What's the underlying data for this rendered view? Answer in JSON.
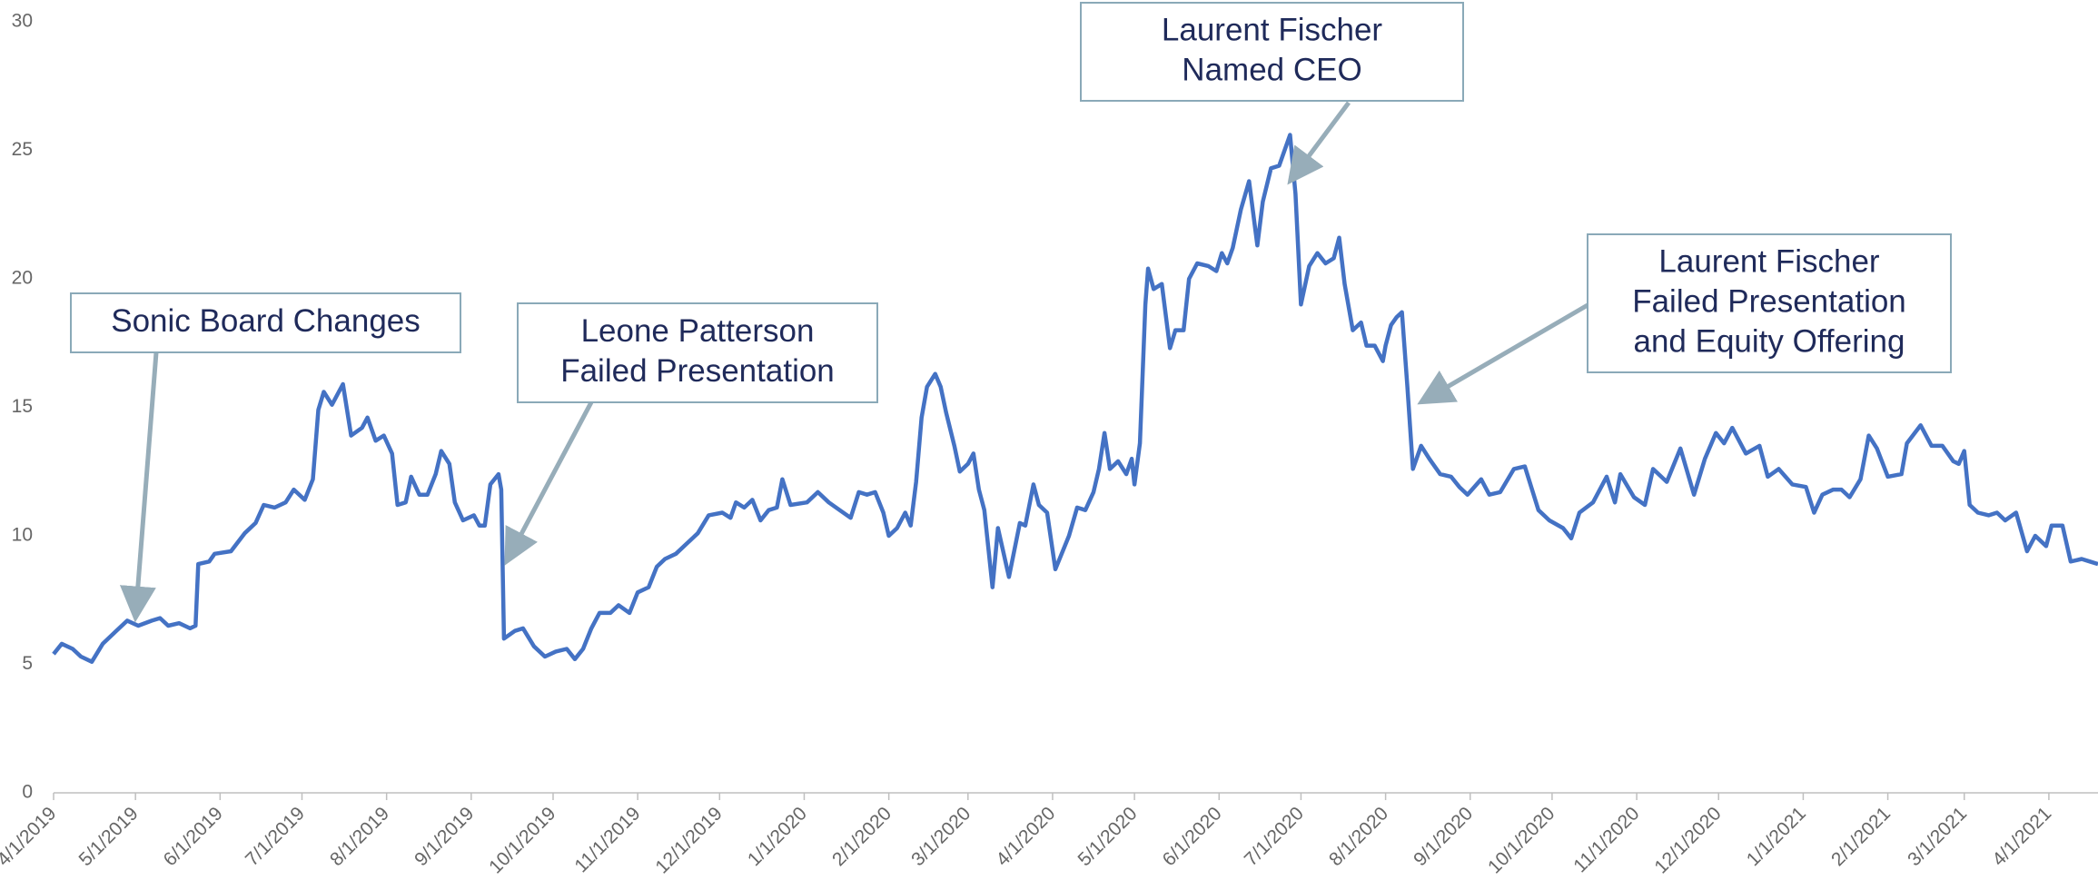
{
  "chart_data": {
    "type": "line",
    "color": "#4472c4",
    "x": [
      "4/1/2019",
      "4/4/2019",
      "4/8/2019",
      "4/11/2019",
      "4/15/2019",
      "4/19/2019",
      "4/23/2019",
      "4/28/2019",
      "5/2/2019",
      "5/7/2019",
      "5/10/2019",
      "5/13/2019",
      "5/17/2019",
      "5/21/2019",
      "5/23/2019",
      "5/24/2019",
      "5/28/2019",
      "5/30/2019",
      "6/5/2019",
      "6/10/2019",
      "6/14/2019",
      "6/17/2019",
      "6/21/2019",
      "6/25/2019",
      "6/28/2019",
      "7/2/2019",
      "7/5/2019",
      "7/7/2019",
      "7/9/2019",
      "7/12/2019",
      "7/16/2019",
      "7/19/2019",
      "7/23/2019",
      "7/25/2019",
      "7/28/2019",
      "7/31/2019",
      "8/3/2019",
      "8/5/2019",
      "8/8/2019",
      "8/10/2019",
      "8/13/2019",
      "8/16/2019",
      "8/19/2019",
      "8/21/2019",
      "8/24/2019",
      "8/26/2019",
      "8/29/2019",
      "9/2/2019",
      "9/4/2019",
      "9/6/2019",
      "9/8/2019",
      "9/11/2019",
      "9/12/2019",
      "9/13/2019",
      "9/17/2019",
      "9/20/2019",
      "9/24/2019",
      "9/28/2019",
      "10/2/2019",
      "10/6/2019",
      "10/9/2019",
      "10/12/2019",
      "10/15/2019",
      "10/18/2019",
      "10/22/2019",
      "10/25/2019",
      "10/29/2019",
      "11/1/2019",
      "11/5/2019",
      "11/8/2019",
      "11/11/2019",
      "11/15/2019",
      "11/19/2019",
      "11/23/2019",
      "11/27/2019",
      "12/2/2019",
      "12/5/2019",
      "12/7/2019",
      "12/10/2019",
      "12/13/2019",
      "12/16/2019",
      "12/19/2019",
      "12/22/2019",
      "12/24/2019",
      "12/27/2019",
      "1/2/2020",
      "1/6/2020",
      "1/10/2020",
      "1/14/2020",
      "1/18/2020",
      "1/21/2020",
      "1/24/2020",
      "1/27/2020",
      "1/30/2020",
      "2/1/2020",
      "2/4/2020",
      "2/7/2020",
      "2/9/2020",
      "2/11/2020",
      "2/13/2020",
      "2/15/2020",
      "2/18/2020",
      "2/20/2020",
      "2/22/2020",
      "2/25/2020",
      "2/27/2020",
      "3/1/2020",
      "3/3/2020",
      "3/5/2020",
      "3/7/2020",
      "3/10/2020",
      "3/12/2020",
      "3/16/2020",
      "3/20/2020",
      "3/22/2020",
      "3/25/2020",
      "3/27/2020",
      "3/30/2020",
      "4/2/2020",
      "4/7/2020",
      "4/10/2020",
      "4/13/2020",
      "4/16/2020",
      "4/18/2020",
      "4/20/2020",
      "4/22/2020",
      "4/25/2020",
      "4/28/2020",
      "4/30/2020",
      "5/1/2020",
      "5/3/2020",
      "5/5/2020",
      "5/6/2020",
      "5/8/2020",
      "5/11/2020",
      "5/14/2020",
      "5/16/2020",
      "5/19/2020",
      "5/21/2020",
      "5/24/2020",
      "5/28/2020",
      "5/31/2020",
      "6/2/2020",
      "6/4/2020",
      "6/6/2020",
      "6/9/2020",
      "6/12/2020",
      "6/15/2020",
      "6/17/2020",
      "6/20/2020",
      "6/23/2020",
      "6/27/2020",
      "6/29/2020",
      "7/1/2020",
      "7/4/2020",
      "7/7/2020",
      "7/10/2020",
      "7/13/2020",
      "7/15/2020",
      "7/17/2020",
      "7/20/2020",
      "7/23/2020",
      "7/25/2020",
      "7/28/2020",
      "7/31/2020",
      "8/1/2020",
      "8/3/2020",
      "8/5/2020",
      "8/7/2020",
      "8/9/2020",
      "8/11/2020",
      "8/14/2020",
      "8/17/2020",
      "8/21/2020",
      "8/25/2020",
      "8/28/2020",
      "8/31/2020",
      "9/5/2020",
      "9/8/2020",
      "9/12/2020",
      "9/17/2020",
      "9/21/2020",
      "9/26/2020",
      "9/30/2020",
      "10/5/2020",
      "10/8/2020",
      "10/11/2020",
      "10/16/2020",
      "10/21/2020",
      "10/24/2020",
      "10/26/2020",
      "10/31/2020",
      "11/4/2020",
      "11/7/2020",
      "11/12/2020",
      "11/17/2020",
      "11/22/2020",
      "11/26/2020",
      "11/30/2020",
      "12/3/2020",
      "12/6/2020",
      "12/11/2020",
      "12/16/2020",
      "12/19/2020",
      "12/23/2020",
      "12/28/2020",
      "1/2/2021",
      "1/5/2021",
      "1/8/2021",
      "1/12/2021",
      "1/15/2021",
      "1/18/2021",
      "1/22/2021",
      "1/25/2021",
      "1/28/2021",
      "2/1/2021",
      "2/6/2021",
      "2/8/2021",
      "2/13/2021",
      "2/17/2021",
      "2/21/2021",
      "2/25/2021",
      "2/27/2021",
      "3/1/2021",
      "3/3/2021",
      "3/6/2021",
      "3/10/2021",
      "3/13/2021",
      "3/16/2021",
      "3/20/2021",
      "3/24/2021",
      "3/27/2021",
      "3/31/2021",
      "4/2/2021",
      "4/6/2021",
      "4/9/2021",
      "4/13/2021",
      "4/16/2021",
      "4/19/2021"
    ],
    "values": [
      5.4,
      5.8,
      5.6,
      5.3,
      5.1,
      5.8,
      6.2,
      6.7,
      6.5,
      6.7,
      6.8,
      6.5,
      6.6,
      6.4,
      6.5,
      8.9,
      9.0,
      9.3,
      9.4,
      10.1,
      10.5,
      11.2,
      11.1,
      11.3,
      11.8,
      11.4,
      12.2,
      14.9,
      15.6,
      15.1,
      15.9,
      13.9,
      14.2,
      14.6,
      13.7,
      13.9,
      13.2,
      11.2,
      11.3,
      12.3,
      11.6,
      11.6,
      12.4,
      13.3,
      12.8,
      11.3,
      10.6,
      10.8,
      10.4,
      10.4,
      12.0,
      12.4,
      11.8,
      6.0,
      6.3,
      6.4,
      5.7,
      5.3,
      5.5,
      5.6,
      5.2,
      5.6,
      6.4,
      7.0,
      7.0,
      7.3,
      7.0,
      7.8,
      8.0,
      8.8,
      9.1,
      9.3,
      9.7,
      10.1,
      10.8,
      10.9,
      10.7,
      11.3,
      11.1,
      11.4,
      10.6,
      11.0,
      11.1,
      12.2,
      11.2,
      11.3,
      11.7,
      11.3,
      11.0,
      10.7,
      11.7,
      11.6,
      11.7,
      10.9,
      10.0,
      10.3,
      10.9,
      10.4,
      12.1,
      14.6,
      15.8,
      16.3,
      15.8,
      14.8,
      13.5,
      12.5,
      12.8,
      13.2,
      11.8,
      11.0,
      8.0,
      10.3,
      8.4,
      10.5,
      10.4,
      12.0,
      11.2,
      10.9,
      8.7,
      10.0,
      11.1,
      11.0,
      11.7,
      12.6,
      14.0,
      12.6,
      12.9,
      12.4,
      13.0,
      12.0,
      13.6,
      19.0,
      20.4,
      19.6,
      19.8,
      17.3,
      18.0,
      18.0,
      20.0,
      20.6,
      20.5,
      20.3,
      21.0,
      20.6,
      21.2,
      22.7,
      23.8,
      21.3,
      23.0,
      24.3,
      24.4,
      25.6,
      23.3,
      19.0,
      20.5,
      21.0,
      20.6,
      20.8,
      21.6,
      19.8,
      18.0,
      18.3,
      17.4,
      17.4,
      16.8,
      17.4,
      18.2,
      18.5,
      18.7,
      15.8,
      12.6,
      13.5,
      13.0,
      12.4,
      12.3,
      11.9,
      11.6,
      12.2,
      11.6,
      11.7,
      12.6,
      12.7,
      11.0,
      10.6,
      10.3,
      9.9,
      10.9,
      11.3,
      12.3,
      11.3,
      12.4,
      11.5,
      11.2,
      12.6,
      12.1,
      13.4,
      11.6,
      13.0,
      14.0,
      13.6,
      14.2,
      13.2,
      13.5,
      12.3,
      12.6,
      12.0,
      11.9,
      10.9,
      11.6,
      11.8,
      11.8,
      11.5,
      12.2,
      13.9,
      13.4,
      12.3,
      12.4,
      13.6,
      14.3,
      13.5,
      13.5,
      12.9,
      12.8,
      13.3,
      11.2,
      10.9,
      10.8,
      10.9,
      10.6,
      10.9,
      9.4,
      10.0,
      9.6,
      10.4,
      10.4,
      9.0,
      9.1,
      9.0,
      8.9
    ],
    "xlim": [
      "4/1/2019",
      "4/19/2021"
    ],
    "xticks": [
      "4/1/2019",
      "5/1/2019",
      "6/1/2019",
      "7/1/2019",
      "8/1/2019",
      "9/1/2019",
      "10/1/2019",
      "11/1/2019",
      "12/1/2019",
      "1/1/2020",
      "2/1/2020",
      "3/1/2020",
      "4/1/2020",
      "5/1/2020",
      "6/1/2020",
      "7/1/2020",
      "8/1/2020",
      "9/1/2020",
      "10/1/2020",
      "11/1/2020",
      "12/1/2020",
      "1/1/2021",
      "2/1/2021",
      "3/1/2021",
      "4/1/2021"
    ],
    "ylim": [
      0,
      30
    ],
    "yticks": [
      0,
      5,
      10,
      15,
      20,
      25,
      30
    ],
    "grid": false,
    "annotations": [
      {
        "lines": [
          "Sonic Board Changes"
        ],
        "x": "5/1/2019",
        "y": 6.8
      },
      {
        "lines": [
          "Leone Patterson",
          "Failed Presentation"
        ],
        "x": "9/14/2019",
        "y": 9.0
      },
      {
        "lines": [
          "Laurent Fischer",
          "Named CEO"
        ],
        "x": "6/27/2020",
        "y": 23.8
      },
      {
        "lines": [
          "Laurent Fischer",
          "Failed Presentation",
          "and Equity Offering"
        ],
        "x": "8/14/2020",
        "y": 15.2
      }
    ]
  }
}
